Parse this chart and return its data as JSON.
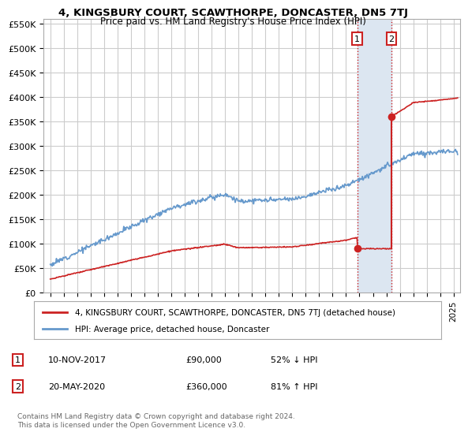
{
  "title": "4, KINGSBURY COURT, SCAWTHORPE, DONCASTER, DN5 7TJ",
  "subtitle": "Price paid vs. HM Land Registry's House Price Index (HPI)",
  "ylim": [
    0,
    560000
  ],
  "yticks": [
    0,
    50000,
    100000,
    150000,
    200000,
    250000,
    300000,
    350000,
    400000,
    450000,
    500000,
    550000
  ],
  "ytick_labels": [
    "£0",
    "£50K",
    "£100K",
    "£150K",
    "£200K",
    "£250K",
    "£300K",
    "£350K",
    "£400K",
    "£450K",
    "£500K",
    "£550K"
  ],
  "hpi_color": "#6699cc",
  "price_color": "#cc2222",
  "highlight_color": "#dce6f1",
  "background_color": "#ffffff",
  "grid_color": "#cccccc",
  "t1": 2017.833,
  "t2": 2020.375,
  "p1": 90000,
  "p2": 360000,
  "transactions": [
    {
      "date": "10-NOV-2017",
      "price": 90000,
      "pct": "52%",
      "dir": "↓",
      "label": "1"
    },
    {
      "date": "20-MAY-2020",
      "price": 360000,
      "pct": "81%",
      "dir": "↑",
      "label": "2"
    }
  ],
  "legend_entries": [
    "4, KINGSBURY COURT, SCAWTHORPE, DONCASTER, DN5 7TJ (detached house)",
    "HPI: Average price, detached house, Doncaster"
  ],
  "footnote": "Contains HM Land Registry data © Crown copyright and database right 2024.\nThis data is licensed under the Open Government Licence v3.0."
}
